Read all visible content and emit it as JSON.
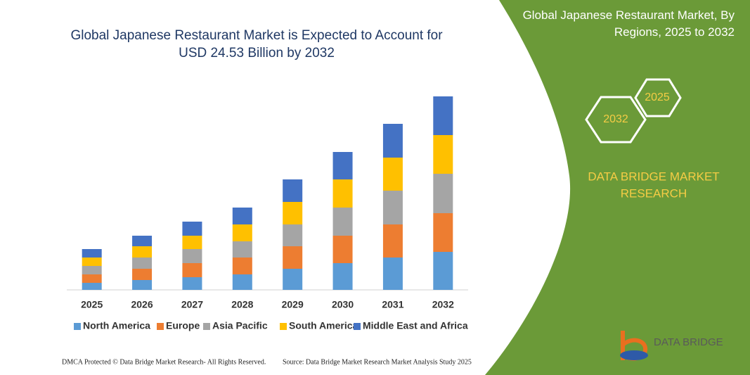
{
  "chart_data": {
    "type": "bar",
    "stacked": true,
    "title": "Global Japanese Restaurant Market is Expected to Account for USD 24.53 Billion by 2032",
    "categories": [
      "2025",
      "2026",
      "2027",
      "2028",
      "2029",
      "2030",
      "2031",
      "2032"
    ],
    "series": [
      {
        "name": "North America",
        "color": "#5b9bd5",
        "values": [
          10,
          14,
          18,
          22,
          30,
          38,
          46,
          54
        ]
      },
      {
        "name": "Europe",
        "color": "#ed7d31",
        "values": [
          12,
          16,
          20,
          24,
          32,
          39,
          47,
          55
        ]
      },
      {
        "name": "Asia Pacific",
        "color": "#a5a5a5",
        "values": [
          12,
          16,
          20,
          23,
          31,
          40,
          48,
          56
        ]
      },
      {
        "name": "South America",
        "color": "#ffc000",
        "values": [
          12,
          16,
          19,
          24,
          32,
          40,
          47,
          55
        ]
      },
      {
        "name": "Middle East and Africa",
        "color": "#4472c4",
        "values": [
          12,
          15,
          20,
          24,
          32,
          39,
          48,
          55
        ]
      }
    ],
    "ylim": [
      0,
      300
    ],
    "grid": false,
    "legend": "bottom"
  },
  "panel": {
    "title": "Global Japanese Restaurant Market, By Regions, 2025 to 2032",
    "hex_labels": [
      "2025",
      "2032"
    ],
    "brand_lines": [
      "DATA BRIDGE MARKET",
      "RESEARCH"
    ],
    "logo": "DATA BRIDGE"
  },
  "footer": {
    "copyright": "DMCA Protected © Data Bridge Market Research- All Rights Reserved.",
    "source": "Source: Data Bridge Market Research  Market Analysis Study 2025"
  }
}
